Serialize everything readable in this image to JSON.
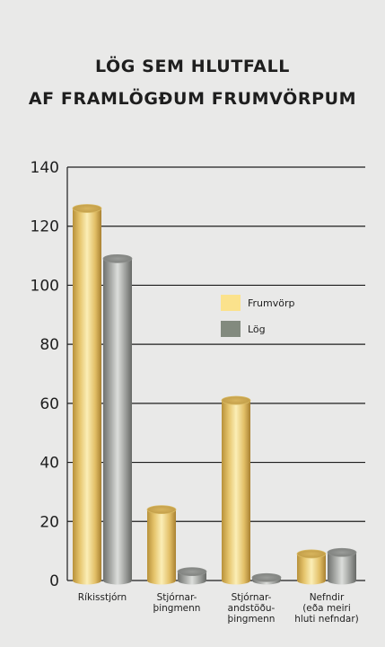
{
  "chart_data": {
    "type": "bar",
    "title": [
      "LÖG SEM HLUTFALL",
      "AF FRAMLÖGÐUM FRUMVÖRPUM"
    ],
    "xlabel": "",
    "ylabel": "",
    "ylim": [
      0,
      140
    ],
    "yticks": [
      0,
      20,
      40,
      60,
      80,
      100,
      120,
      140
    ],
    "grid": true,
    "legend_position": "center-right",
    "categories": [
      [
        "Ríkisstjórn"
      ],
      [
        "Stjórnar-",
        "þingmenn"
      ],
      [
        "Stjórnar-",
        "andstöðu-",
        "þingmenn"
      ],
      [
        "Nefndir",
        "(eða meiri",
        "hluti nefndar)"
      ]
    ],
    "series": [
      {
        "name": "Frumvörp",
        "values": [
          126,
          24,
          61,
          9
        ],
        "color": "#e9c972"
      },
      {
        "name": "Lög",
        "values": [
          109,
          3,
          1,
          9.5
        ],
        "color": "#a7a9a6"
      }
    ]
  }
}
